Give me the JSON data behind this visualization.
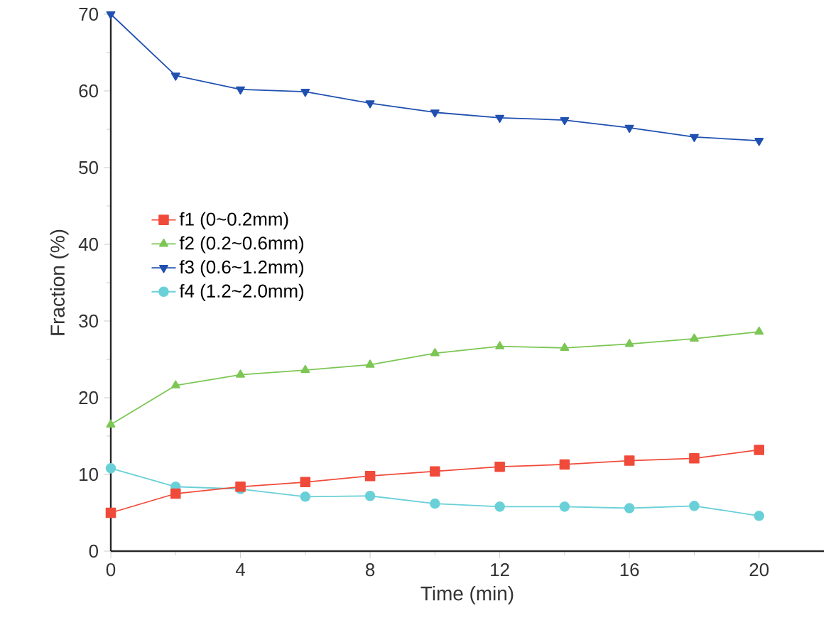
{
  "chart_data": {
    "type": "line",
    "xlabel": "Time (min)",
    "ylabel": "Fraction (%)",
    "x": [
      0,
      2,
      4,
      6,
      8,
      10,
      12,
      14,
      16,
      18,
      20
    ],
    "xlim": [
      0,
      22
    ],
    "xticks": [
      0,
      4,
      8,
      12,
      16,
      20
    ],
    "ylim": [
      0,
      70
    ],
    "yticks": [
      0,
      10,
      20,
      30,
      40,
      50,
      60,
      70
    ],
    "grid": false,
    "legend": "left",
    "line_style": "solid",
    "series": [
      {
        "name": "f1 (0~0.2mm)",
        "color": "#f04a3a",
        "marker": "square",
        "values": [
          5.0,
          7.5,
          8.4,
          9.0,
          9.8,
          10.4,
          11.0,
          11.3,
          11.8,
          12.1,
          13.2
        ]
      },
      {
        "name": "f2 (0.2~0.6mm)",
        "color": "#7cc654",
        "marker": "triangle",
        "values": [
          16.5,
          21.6,
          23.0,
          23.6,
          24.3,
          25.8,
          26.7,
          26.5,
          27.0,
          27.7,
          28.6
        ]
      },
      {
        "name": "f3 (0.6~1.2mm)",
        "color": "#2050b0",
        "marker": "triangle down",
        "values": [
          70.0,
          62.0,
          60.2,
          59.9,
          58.4,
          57.2,
          56.5,
          56.2,
          55.2,
          54.0,
          53.5
        ]
      },
      {
        "name": "f4 (1.2~2.0mm)",
        "color": "#6ad0d8",
        "marker": "circle",
        "values": [
          10.8,
          8.4,
          8.1,
          7.1,
          7.2,
          6.2,
          5.8,
          5.8,
          5.6,
          5.9,
          4.6
        ]
      }
    ]
  }
}
